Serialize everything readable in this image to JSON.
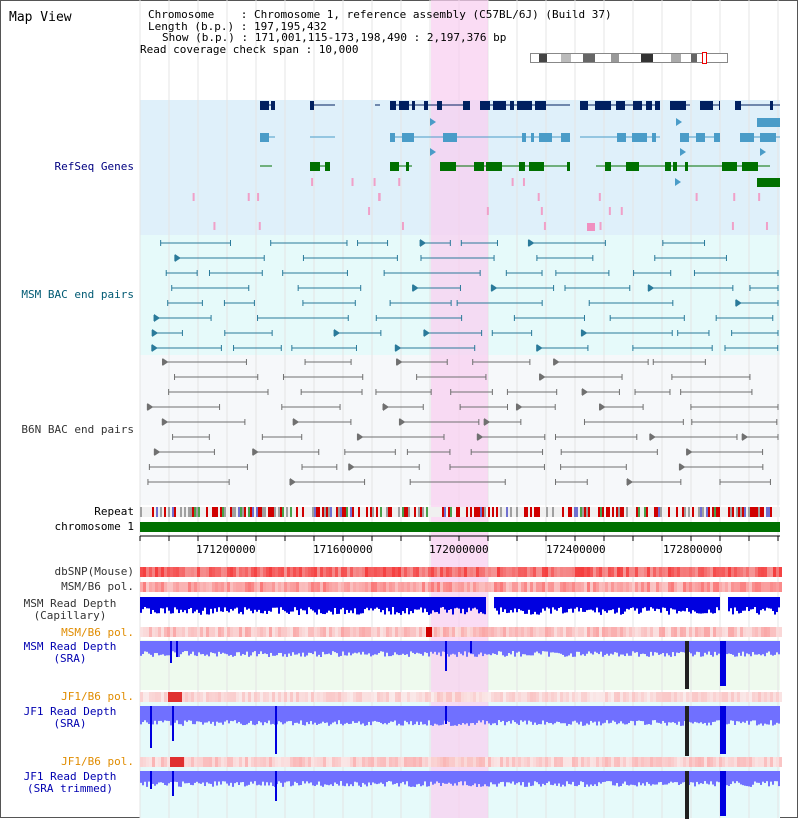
{
  "title": "Map View",
  "info": {
    "line1": "Chromosome    : Chromosome 1, reference assembly (C57BL/6J) (Build 37)",
    "line2": "Length (b.p.) : 197,195,432",
    "line3": "Show (b.p.) : 171,001,115-173,198,490 : 2,197,376 bp",
    "line4": "Read coverage check span : 10,000"
  },
  "tracks": {
    "refseq": "RefSeq Genes",
    "msm_bac": "MSM BAC end pairs",
    "b6n_bac": "B6N BAC end pairs",
    "repeat": "Repeat",
    "chromosome": "chromosome 1",
    "dbsnp": "dbSNP(Mouse)",
    "msm_b6_pol_1": "MSM/B6 pol.",
    "msm_read_depth_cap_1": "MSM Read Depth",
    "msm_read_depth_cap_2": "(Capillary)",
    "msm_b6_pol_2": "MSM/B6 pol.",
    "msm_read_depth_sra_1": "MSM Read Depth",
    "msm_read_depth_sra_2": "(SRA)",
    "jf1_b6_pol_1": "JF1/B6 pol.",
    "jf1_read_depth_sra_1": "JF1 Read Depth",
    "jf1_read_depth_sra_2": "(SRA)",
    "jf1_b6_pol_2": "JF1/B6 pol.",
    "jf1_read_depth_trim_1": "JF1 Read Depth",
    "jf1_read_depth_trim_2": "(SRA trimmed)"
  },
  "ruler": [
    "171200000",
    "171600000",
    "172000000",
    "172400000",
    "172800000"
  ],
  "colors": {
    "refseq_bg": "#dff0fa",
    "bac_bg": "#e6fafa",
    "highlight": "#f8d0f0",
    "gene_dark": "#002060",
    "gene_mid": "#4a9cc8",
    "gene_green": "#007000",
    "chromosome": "#007000",
    "depth_blue": "#0000e0",
    "depth_light": "#7070ff"
  }
}
